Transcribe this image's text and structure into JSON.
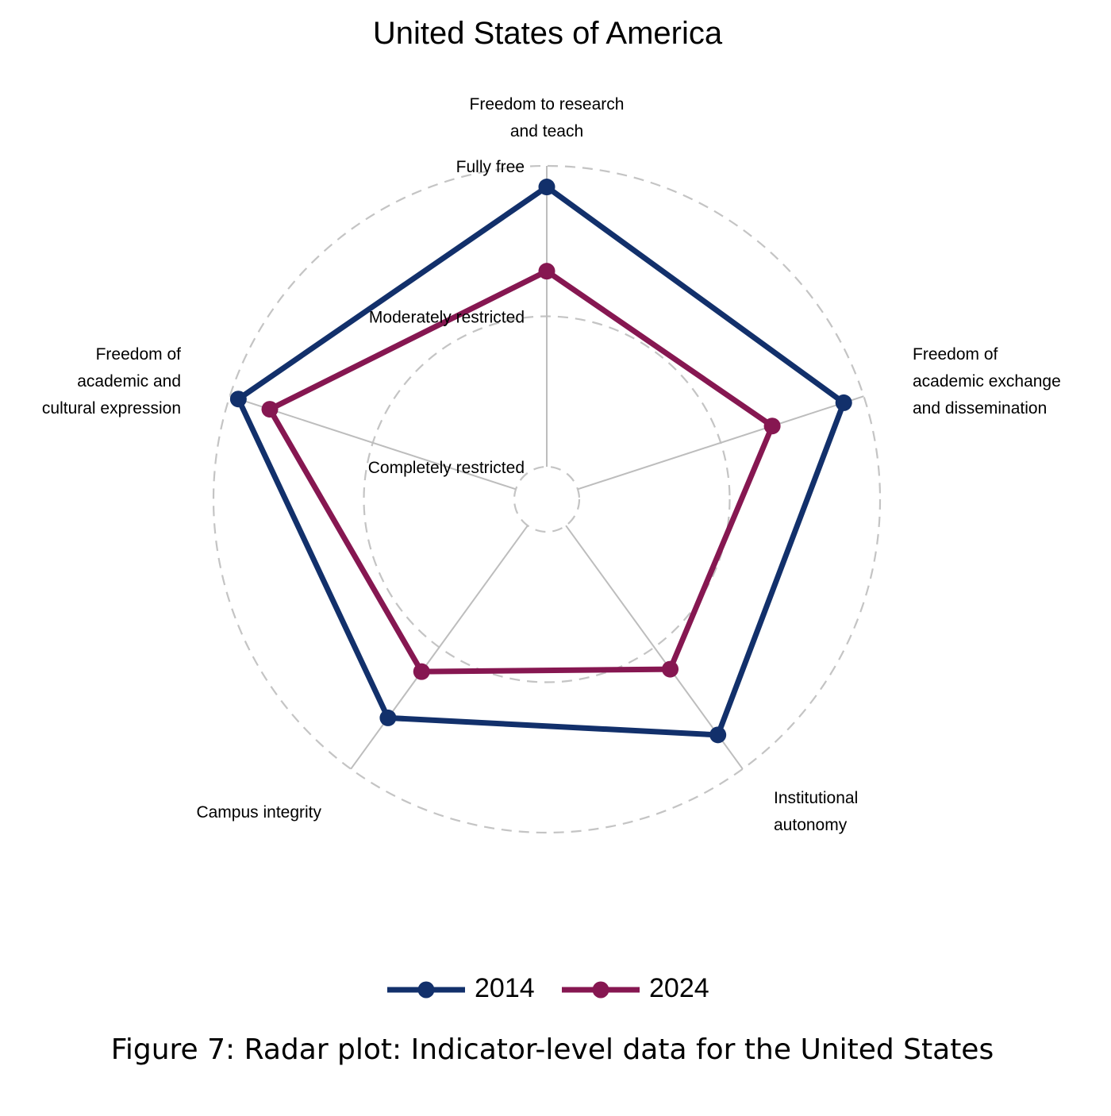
{
  "chart_data": {
    "type": "radar",
    "title": "United States of America",
    "axes": [
      [
        "Freedom to research",
        "and teach"
      ],
      [
        "Freedom of",
        "academic exchange",
        "and dissemination"
      ],
      [
        "Institutional",
        "autonomy"
      ],
      [
        "Campus integrity"
      ],
      [
        "Freedom of",
        "academic and",
        "cultural expression"
      ]
    ],
    "ring_labels": [
      "Completely restricted",
      "Moderately restricted",
      "Fully free"
    ],
    "range": [
      0,
      1
    ],
    "grid": "dashed-circles",
    "legend_position": "bottom",
    "series": [
      {
        "name": "2014",
        "color": "#12306b",
        "values": [
          0.93,
          0.93,
          0.86,
          0.79,
          0.97
        ]
      },
      {
        "name": "2024",
        "color": "#861751",
        "values": [
          0.65,
          0.68,
          0.59,
          0.6,
          0.86
        ]
      }
    ]
  },
  "caption": "Figure 7: Radar plot: Indicator-level data for the United States"
}
